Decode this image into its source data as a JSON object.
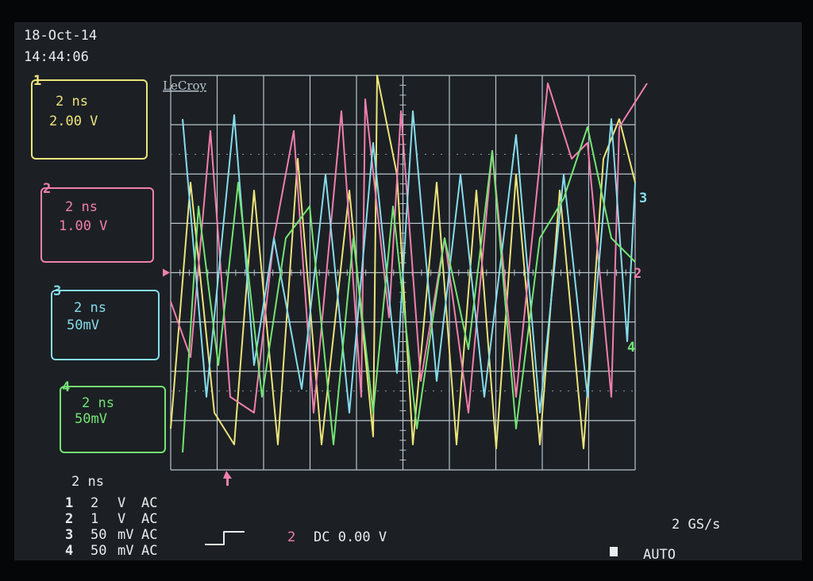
{
  "header": {
    "date": "18-Oct-14",
    "time": "14:44:06"
  },
  "logo": "LeCroy",
  "channels": [
    {
      "number": "1",
      "timebase": "2 ns",
      "scale": "2.00 V"
    },
    {
      "number": "2",
      "timebase": "2 ns",
      "scale": "1.00 V"
    },
    {
      "number": "3",
      "timebase": "2 ns",
      "scale": "50mV"
    },
    {
      "number": "4",
      "timebase": "2 ns",
      "scale": "50mV"
    }
  ],
  "trace_markers": [
    "3",
    "2",
    "4"
  ],
  "summary": {
    "timebase": "2 ns",
    "rows": [
      [
        "1",
        "2",
        "V",
        "AC"
      ],
      [
        "2",
        "1",
        "V",
        "AC"
      ],
      [
        "3",
        "50",
        "mV",
        "AC"
      ],
      [
        "4",
        "50",
        "mV",
        "AC"
      ]
    ]
  },
  "trigger": {
    "channel": "2",
    "setting": "DC 0.00 V"
  },
  "sample_rate": "2 GS/s",
  "mode": "AUTO"
}
